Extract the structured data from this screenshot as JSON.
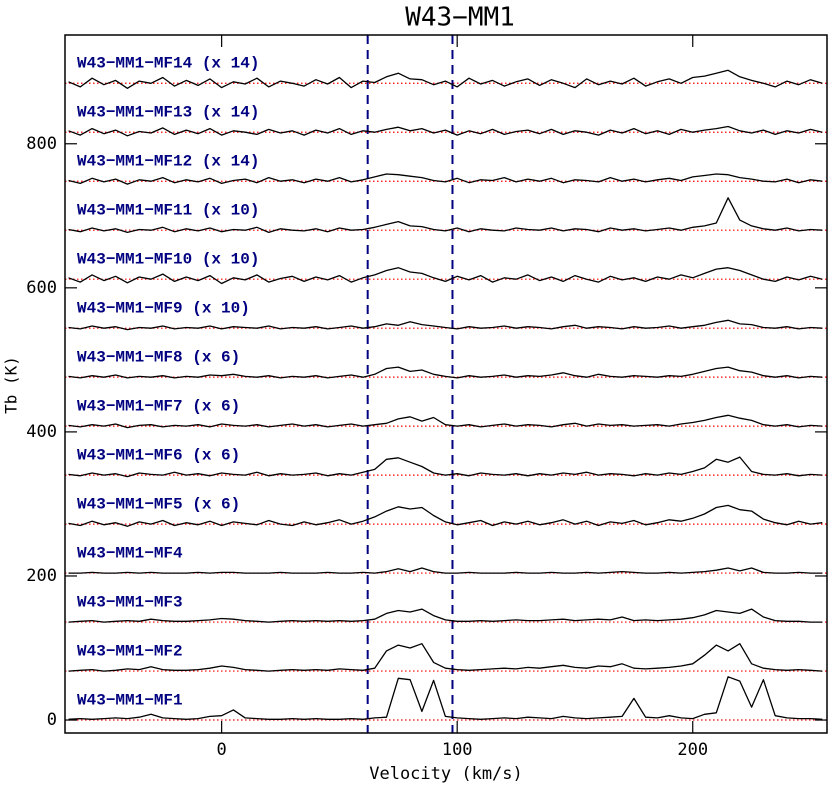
{
  "chart_data": {
    "type": "line",
    "title": "W43−MM1",
    "x_label": "Velocity (km/s)",
    "y_label": "Tb (K)",
    "xlim": [
      -66.5,
      257
    ],
    "ylim": [
      -18,
      951
    ],
    "xticks": [
      0,
      100,
      200
    ],
    "yticks": [
      0,
      200,
      400,
      600,
      800
    ],
    "vlines": [
      62,
      98
    ],
    "vline_color": "#000080",
    "baseline_color": "#ff0000",
    "x": [
      -65,
      -60,
      -55,
      -50,
      -45,
      -40,
      -35,
      -30,
      -25,
      -20,
      -15,
      -10,
      -5,
      0,
      5,
      10,
      15,
      20,
      25,
      30,
      35,
      40,
      45,
      50,
      55,
      60,
      65,
      70,
      75,
      80,
      85,
      90,
      95,
      100,
      105,
      110,
      115,
      120,
      125,
      130,
      135,
      140,
      145,
      150,
      155,
      160,
      165,
      170,
      175,
      180,
      185,
      190,
      195,
      200,
      205,
      210,
      215,
      220,
      225,
      230,
      235,
      240,
      245,
      250,
      255
    ],
    "series": [
      {
        "name": "W43−MM1−MF1",
        "color": "#000000",
        "baseline": 0,
        "values": [
          1,
          2,
          1,
          2,
          3,
          2,
          4,
          8,
          3,
          2,
          1,
          2,
          5,
          6,
          14,
          3,
          2,
          1,
          1,
          2,
          1,
          2,
          1,
          1,
          2,
          1,
          3,
          4,
          58,
          56,
          12,
          55,
          5,
          3,
          2,
          1,
          2,
          3,
          2,
          4,
          3,
          2,
          5,
          3,
          2,
          3,
          4,
          5,
          30,
          4,
          3,
          6,
          3,
          2,
          8,
          10,
          60,
          54,
          18,
          56,
          6,
          3,
          2,
          2,
          1
        ]
      },
      {
        "name": "W43−MM1−MF2",
        "color": "#000000",
        "baseline": 68,
        "values": [
          68,
          69,
          70,
          68,
          69,
          71,
          70,
          74,
          70,
          69,
          69,
          70,
          72,
          75,
          73,
          70,
          69,
          68,
          69,
          70,
          69,
          70,
          69,
          71,
          70,
          69,
          72,
          96,
          104,
          100,
          106,
          80,
          72,
          70,
          69,
          70,
          71,
          72,
          71,
          73,
          72,
          74,
          76,
          73,
          72,
          75,
          74,
          78,
          72,
          71,
          72,
          73,
          75,
          78,
          90,
          104,
          96,
          106,
          78,
          72,
          70,
          69,
          70,
          69,
          68
        ]
      },
      {
        "name": "W43−MM1−MF3",
        "color": "#000000",
        "baseline": 136,
        "values": [
          136,
          137,
          138,
          136,
          137,
          138,
          137,
          140,
          138,
          137,
          137,
          138,
          139,
          141,
          140,
          138,
          137,
          136,
          137,
          138,
          137,
          138,
          137,
          138,
          137,
          138,
          140,
          148,
          152,
          150,
          154,
          145,
          139,
          137,
          137,
          138,
          137,
          138,
          139,
          138,
          138,
          139,
          140,
          138,
          139,
          140,
          139,
          143,
          138,
          139,
          138,
          139,
          140,
          142,
          146,
          152,
          150,
          148,
          154,
          143,
          138,
          137,
          137,
          136,
          136
        ]
      },
      {
        "name": "W43−MM1−MF4",
        "color": "#000000",
        "baseline": 204,
        "values": [
          204,
          204,
          205,
          204,
          204,
          205,
          204,
          205,
          204,
          204,
          204,
          205,
          204,
          205,
          205,
          204,
          204,
          204,
          205,
          204,
          204,
          204,
          205,
          204,
          204,
          205,
          204,
          206,
          210,
          206,
          211,
          206,
          204,
          204,
          205,
          204,
          204,
          204,
          205,
          204,
          204,
          205,
          204,
          204,
          205,
          204,
          205,
          206,
          205,
          204,
          204,
          205,
          204,
          205,
          206,
          208,
          211,
          207,
          211,
          205,
          204,
          204,
          205,
          204,
          204
        ]
      },
      {
        "name": "W43−MM1−MF5 (x 6)",
        "color": "#000000",
        "baseline": 272,
        "values": [
          273,
          270,
          276,
          271,
          274,
          269,
          275,
          272,
          277,
          270,
          274,
          271,
          276,
          270,
          275,
          273,
          271,
          277,
          272,
          270,
          275,
          271,
          274,
          278,
          272,
          276,
          282,
          290,
          296,
          293,
          295,
          284,
          275,
          271,
          274,
          277,
          270,
          275,
          272,
          276,
          271,
          274,
          278,
          272,
          276,
          270,
          275,
          273,
          277,
          271,
          274,
          278,
          276,
          280,
          286,
          295,
          298,
          292,
          290,
          279,
          274,
          271,
          276,
          272,
          274
        ]
      },
      {
        "name": "W43−MM1−MF6 (x 6)",
        "color": "#000000",
        "baseline": 340,
        "values": [
          341,
          339,
          343,
          340,
          342,
          338,
          343,
          341,
          340,
          344,
          340,
          342,
          339,
          343,
          341,
          340,
          344,
          339,
          342,
          340,
          341,
          343,
          339,
          342,
          340,
          344,
          348,
          362,
          364,
          358,
          352,
          343,
          340,
          342,
          339,
          343,
          341,
          340,
          342,
          339,
          342,
          340,
          343,
          341,
          344,
          340,
          342,
          341,
          339,
          342,
          340,
          343,
          341,
          345,
          350,
          362,
          358,
          365,
          345,
          341,
          340,
          342,
          339,
          341,
          340
        ]
      },
      {
        "name": "W43−MM1−MF7 (x 6)",
        "color": "#000000",
        "baseline": 408,
        "values": [
          409,
          407,
          410,
          408,
          411,
          406,
          409,
          410,
          407,
          409,
          408,
          410,
          407,
          411,
          409,
          408,
          410,
          407,
          409,
          411,
          408,
          410,
          407,
          409,
          411,
          408,
          410,
          412,
          418,
          421,
          415,
          420,
          410,
          408,
          410,
          407,
          409,
          411,
          408,
          410,
          409,
          407,
          410,
          412,
          408,
          411,
          409,
          410,
          408,
          409,
          410,
          408,
          411,
          413,
          416,
          420,
          423,
          419,
          416,
          410,
          408,
          410,
          407,
          409,
          408
        ]
      },
      {
        "name": "W43−MM1−MF8 (x 6)",
        "color": "#000000",
        "baseline": 476,
        "values": [
          477,
          475,
          478,
          476,
          479,
          475,
          477,
          476,
          478,
          475,
          477,
          476,
          479,
          478,
          480,
          477,
          476,
          478,
          475,
          477,
          476,
          478,
          475,
          477,
          479,
          476,
          480,
          488,
          490,
          484,
          486,
          480,
          477,
          475,
          478,
          476,
          477,
          479,
          476,
          478,
          477,
          479,
          482,
          478,
          476,
          480,
          477,
          476,
          478,
          477,
          476,
          478,
          477,
          480,
          484,
          488,
          490,
          485,
          483,
          478,
          476,
          478,
          475,
          477,
          476
        ]
      },
      {
        "name": "W43−MM1−MF9 (x 10)",
        "color": "#000000",
        "baseline": 544,
        "values": [
          545,
          543,
          547,
          544,
          546,
          542,
          545,
          544,
          547,
          543,
          545,
          544,
          547,
          543,
          546,
          545,
          544,
          547,
          543,
          545,
          544,
          546,
          543,
          545,
          547,
          544,
          546,
          550,
          548,
          553,
          549,
          547,
          545,
          543,
          546,
          544,
          545,
          547,
          544,
          546,
          545,
          543,
          546,
          548,
          544,
          546,
          545,
          543,
          546,
          544,
          545,
          547,
          544,
          546,
          548,
          552,
          555,
          550,
          549,
          545,
          544,
          546,
          543,
          545,
          544
        ]
      },
      {
        "name": "W43−MM1−MF10 (x 10)",
        "color": "#000000",
        "baseline": 612,
        "values": [
          614,
          608,
          618,
          610,
          616,
          607,
          615,
          612,
          619,
          609,
          615,
          610,
          617,
          606,
          614,
          611,
          618,
          608,
          613,
          616,
          609,
          615,
          611,
          617,
          608,
          614,
          618,
          624,
          628,
          622,
          620,
          614,
          609,
          616,
          611,
          617,
          608,
          614,
          612,
          618,
          610,
          615,
          609,
          617,
          612,
          608,
          616,
          611,
          614,
          609,
          615,
          612,
          618,
          614,
          620,
          626,
          628,
          624,
          618,
          612,
          609,
          615,
          611,
          616,
          612
        ]
      },
      {
        "name": "W43−MM1−MF11 (x 10)",
        "color": "#000000",
        "baseline": 680,
        "values": [
          681,
          678,
          683,
          679,
          682,
          677,
          681,
          680,
          684,
          678,
          682,
          679,
          683,
          678,
          681,
          680,
          684,
          677,
          682,
          680,
          679,
          682,
          678,
          683,
          680,
          681,
          684,
          688,
          692,
          686,
          685,
          681,
          679,
          683,
          678,
          682,
          680,
          679,
          683,
          681,
          680,
          683,
          679,
          682,
          681,
          678,
          683,
          680,
          682,
          679,
          681,
          683,
          680,
          684,
          686,
          690,
          725,
          694,
          686,
          682,
          680,
          683,
          679,
          681,
          680
        ]
      },
      {
        "name": "W43−MM1−MF12 (x 14)",
        "color": "#000000",
        "baseline": 748,
        "values": [
          749,
          745,
          752,
          747,
          751,
          744,
          750,
          748,
          753,
          746,
          750,
          747,
          752,
          745,
          749,
          751,
          746,
          753,
          748,
          750,
          746,
          751,
          748,
          753,
          747,
          750,
          754,
          758,
          757,
          755,
          753,
          749,
          747,
          752,
          746,
          750,
          749,
          753,
          747,
          751,
          748,
          752,
          746,
          750,
          749,
          747,
          753,
          748,
          751,
          747,
          750,
          752,
          749,
          754,
          756,
          758,
          757,
          753,
          751,
          748,
          747,
          751,
          746,
          750,
          748
        ]
      },
      {
        "name": "W43−MM1−MF13 (x 14)",
        "color": "#000000",
        "baseline": 816,
        "values": [
          818,
          812,
          821,
          814,
          819,
          811,
          817,
          815,
          822,
          813,
          819,
          814,
          821,
          812,
          818,
          816,
          813,
          820,
          815,
          818,
          812,
          819,
          815,
          821,
          813,
          818,
          816,
          820,
          823,
          818,
          821,
          815,
          819,
          812,
          818,
          814,
          820,
          813,
          817,
          819,
          814,
          820,
          813,
          818,
          816,
          812,
          819,
          815,
          821,
          814,
          818,
          813,
          820,
          816,
          819,
          821,
          824,
          818,
          815,
          819,
          813,
          818,
          815,
          820,
          816
        ]
      },
      {
        "name": "W43−MM1−MF14 (x 14)",
        "color": "#000000",
        "baseline": 884,
        "values": [
          886,
          879,
          891,
          882,
          888,
          877,
          887,
          884,
          892,
          880,
          888,
          881,
          890,
          878,
          886,
          883,
          891,
          879,
          887,
          884,
          880,
          889,
          883,
          892,
          878,
          887,
          885,
          893,
          898,
          890,
          889,
          882,
          887,
          879,
          891,
          883,
          888,
          880,
          886,
          890,
          881,
          889,
          884,
          878,
          890,
          882,
          887,
          883,
          891,
          880,
          886,
          890,
          884,
          892,
          894,
          898,
          902,
          893,
          888,
          884,
          879,
          887,
          882,
          889,
          884
        ]
      }
    ]
  }
}
